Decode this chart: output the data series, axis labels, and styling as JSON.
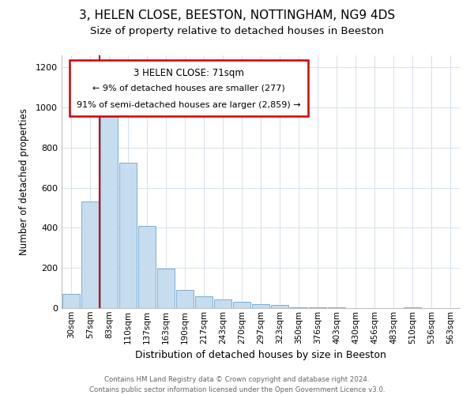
{
  "title": "3, HELEN CLOSE, BEESTON, NOTTINGHAM, NG9 4DS",
  "subtitle": "Size of property relative to detached houses in Beeston",
  "xlabel": "Distribution of detached houses by size in Beeston",
  "ylabel": "Number of detached properties",
  "footer_line1": "Contains HM Land Registry data © Crown copyright and database right 2024.",
  "footer_line2": "Contains public sector information licensed under the Open Government Licence v3.0.",
  "bar_labels": [
    "30sqm",
    "57sqm",
    "83sqm",
    "110sqm",
    "137sqm",
    "163sqm",
    "190sqm",
    "217sqm",
    "243sqm",
    "270sqm",
    "297sqm",
    "323sqm",
    "350sqm",
    "376sqm",
    "403sqm",
    "430sqm",
    "456sqm",
    "483sqm",
    "510sqm",
    "536sqm",
    "563sqm"
  ],
  "bar_values": [
    70,
    530,
    1000,
    725,
    410,
    197,
    90,
    60,
    45,
    32,
    20,
    15,
    5,
    2,
    2,
    1,
    0,
    0,
    5,
    0,
    0
  ],
  "bar_color": "#c6dcef",
  "bar_edge_color": "#7bafd4",
  "vline_x": 1.5,
  "vline_color": "#cc0000",
  "annotation_title": "3 HELEN CLOSE: 71sqm",
  "annotation_line1": "← 9% of detached houses are smaller (277)",
  "annotation_line2": "91% of semi-detached houses are larger (2,859) →",
  "annotation_box_edgecolor": "#cc0000",
  "ylim": [
    0,
    1260
  ],
  "yticks": [
    0,
    200,
    400,
    600,
    800,
    1000,
    1200
  ],
  "title_fontsize": 11,
  "subtitle_fontsize": 9.5
}
